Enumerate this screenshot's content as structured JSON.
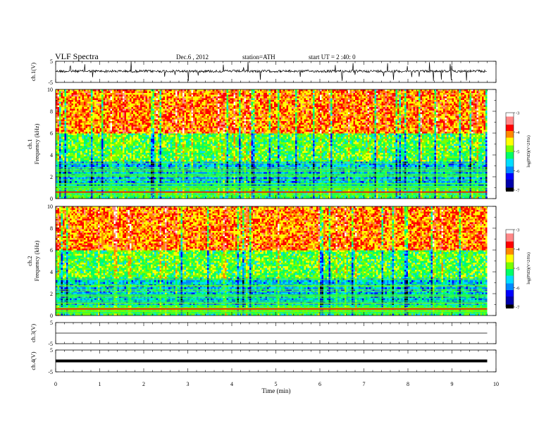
{
  "header": {
    "title": "VLF  Spectra",
    "date": "Dec.6  , 2012",
    "station": "station=ATH",
    "start": "start  UT  =   2  :40:  0"
  },
  "colors": {
    "colormap": [
      "#000000",
      "#0000aa",
      "#0000ff",
      "#0088ff",
      "#00ddff",
      "#00ff66",
      "#77ff00",
      "#ffff00",
      "#ff8800",
      "#ff0000",
      "#ff8888",
      "#ffffff"
    ]
  },
  "chart_data": [
    {
      "id": "ch1-waveform",
      "type": "line",
      "ylabel": "ch.1(V)",
      "ylim": [
        -5,
        5
      ],
      "yticks": [
        "5",
        "-5"
      ],
      "x_range_min": [
        0,
        10
      ],
      "data_end_min": 9.8,
      "baseline_v": 0.3
    },
    {
      "id": "ch1-spectrogram",
      "type": "heatmap",
      "ylabel": "ch.1\nFrequency  (kHz)",
      "ylim": [
        0,
        10
      ],
      "yticks": [
        "0",
        "2",
        "4",
        "6",
        "8",
        "10"
      ],
      "colorbar": {
        "label": "log(PSD)(V^2/Hz)",
        "ticks": [
          "-3",
          "-4",
          "-5",
          "-6",
          "-7"
        ],
        "range": [
          -7,
          -3
        ]
      }
    },
    {
      "id": "ch2-spectrogram",
      "type": "heatmap",
      "ylabel": "ch.2\nFrequency  (kHz)",
      "ylim": [
        0,
        10
      ],
      "yticks": [
        "0",
        "2",
        "4",
        "6",
        "8",
        "10"
      ],
      "colorbar": {
        "label": "log(PSD)(V^2/Hz)",
        "ticks": [
          "-3",
          "-4",
          "-5",
          "-6",
          "-7"
        ],
        "range": [
          -7,
          -3
        ]
      }
    },
    {
      "id": "ch3-waveform",
      "type": "line",
      "ylabel": "ch.3(V)",
      "ylim": [
        -5,
        5
      ],
      "yticks": [
        "5",
        "-5"
      ],
      "baseline_v": 0
    },
    {
      "id": "ch4-waveform",
      "type": "line",
      "ylabel": "ch.4(V)",
      "ylim": [
        -5,
        5
      ],
      "yticks": [
        "5",
        "-5"
      ],
      "baseline_v": 0
    }
  ],
  "xaxis": {
    "label": "Time  (min)",
    "ticks": [
      "0",
      "1",
      "2",
      "3",
      "4",
      "5",
      "6",
      "7",
      "8",
      "9",
      "10"
    ]
  }
}
